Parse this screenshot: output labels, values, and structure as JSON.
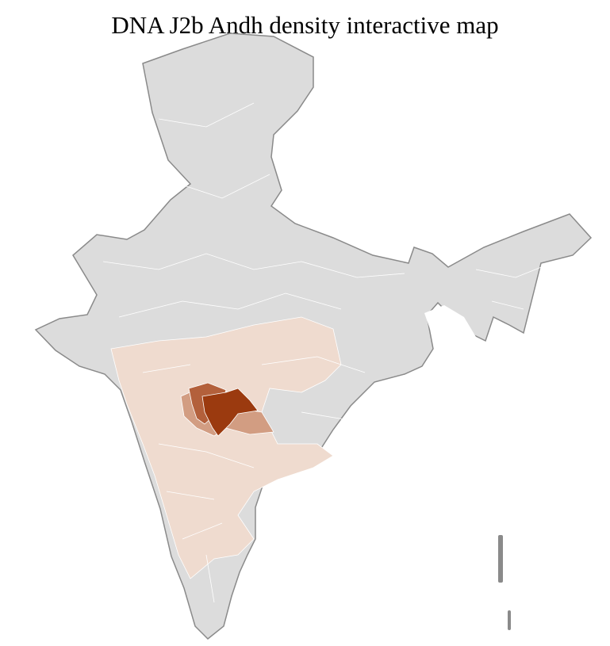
{
  "title": "DNA J2b Andh density interactive map",
  "colors": {
    "no_data": "#dcdcdc",
    "low": "#efdbcf",
    "medium": "#d29d82",
    "high": "#b3603b",
    "highest": "#9b3a0f",
    "state_border": "#8a8a8a",
    "district_border": "#ffffff"
  }
}
